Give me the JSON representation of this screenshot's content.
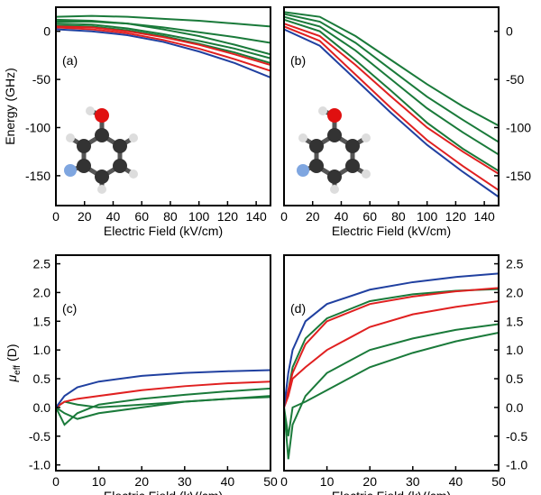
{
  "chart_data": [
    {
      "type": "line",
      "label": "(a)",
      "xlabel": "Electric Field (kV/cm)",
      "ylabel": "Energy (GHz)",
      "xlim": [
        0,
        150
      ],
      "xticks": [
        0,
        20,
        40,
        60,
        80,
        100,
        120,
        140
      ],
      "ylim": [
        -181,
        25
      ],
      "yticks": [
        -150,
        -100,
        -50,
        0
      ],
      "yaxis_side": "left",
      "x": [
        0,
        25,
        50,
        75,
        100,
        125,
        150
      ],
      "series": [
        {
          "color": "#1a7a3a",
          "values": [
            15,
            16,
            15,
            13,
            11,
            8,
            5
          ]
        },
        {
          "color": "#1a7a3a",
          "values": [
            10,
            10,
            8,
            4,
            -1,
            -6,
            -12
          ]
        },
        {
          "color": "#1a7a3a",
          "values": [
            12,
            11,
            8,
            2,
            -5,
            -14,
            -24
          ]
        },
        {
          "color": "#1a7a3a",
          "values": [
            8,
            7,
            3,
            -3,
            -10,
            -18,
            -28
          ]
        },
        {
          "color": "#1a7a3a",
          "values": [
            6,
            5,
            1,
            -5,
            -13,
            -22,
            -33
          ]
        },
        {
          "color": "#e02020",
          "values": [
            5,
            4,
            0,
            -6,
            -14,
            -24,
            -35
          ]
        },
        {
          "color": "#e02020",
          "values": [
            4,
            2,
            -2,
            -9,
            -18,
            -29,
            -41
          ]
        },
        {
          "color": "#2040a0",
          "values": [
            2,
            0,
            -4,
            -11,
            -21,
            -33,
            -48
          ]
        }
      ]
    },
    {
      "type": "line",
      "label": "(b)",
      "xlabel": "Electric Field (kV/cm)",
      "xlim": [
        0,
        150
      ],
      "xticks": [
        0,
        20,
        40,
        60,
        80,
        100,
        120,
        140
      ],
      "ylim": [
        -181,
        25
      ],
      "yticks": [
        -150,
        -100,
        -50,
        0
      ],
      "yaxis_side": "right",
      "x": [
        0,
        25,
        50,
        75,
        100,
        125,
        150
      ],
      "series": [
        {
          "color": "#1a7a3a",
          "values": [
            20,
            15,
            -5,
            -30,
            -55,
            -78,
            -98
          ]
        },
        {
          "color": "#1a7a3a",
          "values": [
            18,
            10,
            -12,
            -40,
            -68,
            -92,
            -115
          ]
        },
        {
          "color": "#1a7a3a",
          "values": [
            15,
            5,
            -20,
            -50,
            -80,
            -105,
            -128
          ]
        },
        {
          "color": "#1a7a3a",
          "values": [
            12,
            0,
            -30,
            -62,
            -95,
            -122,
            -145
          ]
        },
        {
          "color": "#e02020",
          "values": [
            8,
            -5,
            -35,
            -68,
            -100,
            -125,
            -148
          ]
        },
        {
          "color": "#e02020",
          "values": [
            5,
            -10,
            -45,
            -80,
            -113,
            -140,
            -165
          ]
        },
        {
          "color": "#2040a0",
          "values": [
            2,
            -15,
            -50,
            -85,
            -118,
            -146,
            -172
          ]
        }
      ]
    },
    {
      "type": "line",
      "label": "(c)",
      "xlabel": "Electric Field (kV/cm)",
      "ylabel": {
        "symbol": "μ",
        "subscript": "eff",
        "unit": "(D)"
      },
      "xlim": [
        0,
        50
      ],
      "xticks": [
        0,
        10,
        20,
        30,
        40,
        50
      ],
      "ylim": [
        -1.1,
        2.65
      ],
      "yticks": [
        {
          "value": -1,
          "label": "-1.0"
        },
        -0.5,
        {
          "value": 0,
          "label": "0.0"
        },
        0.5,
        {
          "value": 1,
          "label": "1.0"
        },
        1.5,
        {
          "value": 2,
          "label": "2.0"
        },
        2.5
      ],
      "yaxis_side": "left",
      "x": [
        0,
        2,
        5,
        10,
        20,
        30,
        40,
        50
      ],
      "series": [
        {
          "color": "#1a7a3a",
          "values": [
            0,
            -0.3,
            -0.1,
            0.05,
            0.15,
            0.22,
            0.28,
            0.33
          ]
        },
        {
          "color": "#1a7a3a",
          "values": [
            0,
            0.1,
            0.05,
            0.0,
            0.05,
            0.1,
            0.15,
            0.2
          ]
        },
        {
          "color": "#1a7a3a",
          "values": [
            0,
            -0.1,
            -0.2,
            -0.1,
            0.0,
            0.1,
            0.15,
            0.18
          ]
        },
        {
          "color": "#e02020",
          "values": [
            0,
            0.1,
            0.15,
            0.2,
            0.3,
            0.37,
            0.42,
            0.45
          ]
        },
        {
          "color": "#2040a0",
          "values": [
            0,
            0.2,
            0.35,
            0.45,
            0.55,
            0.6,
            0.63,
            0.65
          ]
        }
      ]
    },
    {
      "type": "line",
      "label": "(d)",
      "xlabel": "Electric Field (kV/cm)",
      "xlim": [
        0,
        50
      ],
      "xticks": [
        0,
        10,
        20,
        30,
        40,
        50
      ],
      "ylim": [
        -1.1,
        2.65
      ],
      "yticks": [
        {
          "value": -1,
          "label": "-1.0"
        },
        -0.5,
        {
          "value": 0,
          "label": "0.0"
        },
        0.5,
        {
          "value": 1,
          "label": "1.0"
        },
        1.5,
        {
          "value": 2,
          "label": "2.0"
        },
        2.5
      ],
      "yaxis_side": "right",
      "x": [
        0,
        1,
        2,
        5,
        10,
        20,
        30,
        40,
        50
      ],
      "series": [
        {
          "color": "#1a7a3a",
          "values": [
            0,
            -0.9,
            -0.3,
            0.2,
            0.6,
            1.0,
            1.2,
            1.35,
            1.45
          ]
        },
        {
          "color": "#1a7a3a",
          "values": [
            0,
            -0.5,
            0.0,
            0.1,
            0.3,
            0.7,
            0.95,
            1.15,
            1.3
          ]
        },
        {
          "color": "#1a7a3a",
          "values": [
            0,
            0.3,
            0.7,
            1.2,
            1.55,
            1.85,
            1.97,
            2.03,
            2.06
          ]
        },
        {
          "color": "#e02020",
          "values": [
            0,
            0.2,
            0.5,
            0.7,
            1.0,
            1.4,
            1.62,
            1.75,
            1.85
          ]
        },
        {
          "color": "#e02020",
          "values": [
            0,
            0.3,
            0.6,
            1.1,
            1.5,
            1.8,
            1.93,
            2.02,
            2.08
          ]
        },
        {
          "color": "#2040a0",
          "values": [
            0,
            0.6,
            1.0,
            1.5,
            1.8,
            2.05,
            2.18,
            2.27,
            2.33
          ]
        }
      ]
    }
  ]
}
